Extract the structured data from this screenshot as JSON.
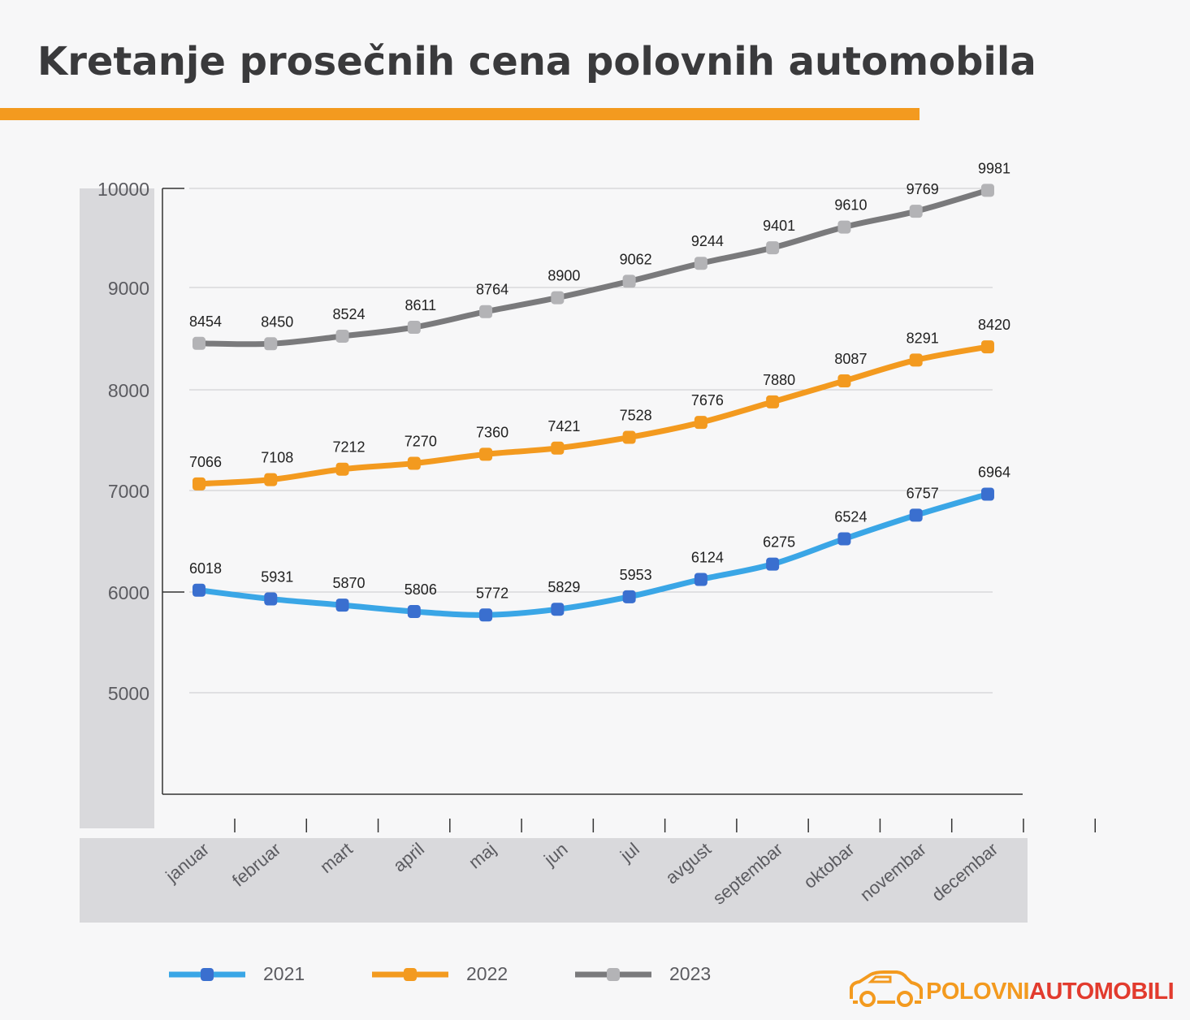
{
  "title": "Kretanje prosečnih cena polovnih automobila",
  "colors": {
    "accent": "#f39a1f",
    "series_2021": "#3aa6e6",
    "series_2022": "#f39a1f",
    "series_2023": "#7a7a7c",
    "marker_2021": "#3a6fcf",
    "marker_2022": "#f39a1f",
    "marker_2023": "#b3b3b6",
    "logo_red": "#e23b2e"
  },
  "chart_data": {
    "type": "line",
    "title": "Kretanje prosečnih cena polovnih automobila",
    "xlabel": "",
    "ylabel": "",
    "categories": [
      "januar",
      "februar",
      "mart",
      "april",
      "maj",
      "jun",
      "jul",
      "avgust",
      "septembar",
      "oktobar",
      "novembar",
      "decembar"
    ],
    "yticks": [
      5000,
      6000,
      7000,
      8000,
      9000,
      10000
    ],
    "series": [
      {
        "name": "2021",
        "values": [
          6018,
          5931,
          5870,
          5806,
          5772,
          5829,
          5953,
          6124,
          6275,
          6524,
          6757,
          6964
        ]
      },
      {
        "name": "2022",
        "values": [
          7066,
          7108,
          7212,
          7270,
          7360,
          7421,
          7528,
          7676,
          7880,
          8087,
          8291,
          8420
        ]
      },
      {
        "name": "2023",
        "values": [
          8454,
          8450,
          8524,
          8611,
          8764,
          8900,
          9062,
          9244,
          9401,
          9610,
          9769,
          9981
        ]
      }
    ],
    "legend_position": "bottom",
    "grid": true
  },
  "legend": [
    {
      "label": "2021"
    },
    {
      "label": "2022"
    },
    {
      "label": "2023"
    }
  ],
  "logo": {
    "part1": "POLOVNI",
    "part2": "AUTOMOBILI"
  }
}
